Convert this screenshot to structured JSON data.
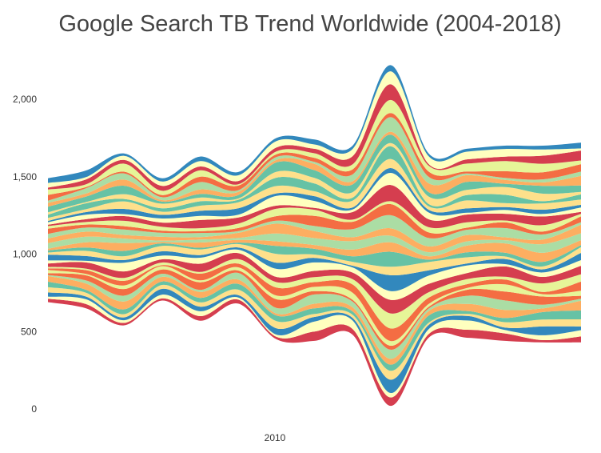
{
  "chart_data": {
    "type": "area",
    "stream_style": "streamgraph",
    "title": "Google Search TB Trend Worldwide (2004-2018)",
    "xlabel": "",
    "ylabel": "",
    "x_range": [
      2004,
      2018
    ],
    "ylim": [
      0,
      2300
    ],
    "y_ticks": [
      {
        "value": 0,
        "label": "0"
      },
      {
        "value": 500,
        "label": "500"
      },
      {
        "value": 1000,
        "label": "1,000"
      },
      {
        "value": 1500,
        "label": "1,500"
      },
      {
        "value": 2000,
        "label": "2,000"
      }
    ],
    "x_ticks": [
      {
        "value": 2010,
        "label": "2010"
      }
    ],
    "grid": false,
    "legend": "none",
    "x": [
      2004,
      2005,
      2006,
      2007,
      2008,
      2009,
      2010,
      2011,
      2012,
      2013,
      2014,
      2015,
      2016,
      2017,
      2018
    ],
    "envelope_top": [
      1490,
      1540,
      1650,
      1490,
      1630,
      1530,
      1750,
      1740,
      1700,
      2220,
      1650,
      1680,
      1700,
      1700,
      1720
    ],
    "envelope_bottom": [
      690,
      650,
      540,
      700,
      570,
      680,
      450,
      440,
      480,
      20,
      460,
      460,
      440,
      430,
      430
    ],
    "palette": [
      "#d53e4f",
      "#f46d43",
      "#fdae61",
      "#fee08b",
      "#ffffbf",
      "#e6f598",
      "#abdda4",
      "#66c2a5",
      "#3288bd"
    ],
    "series_count": 36
  }
}
